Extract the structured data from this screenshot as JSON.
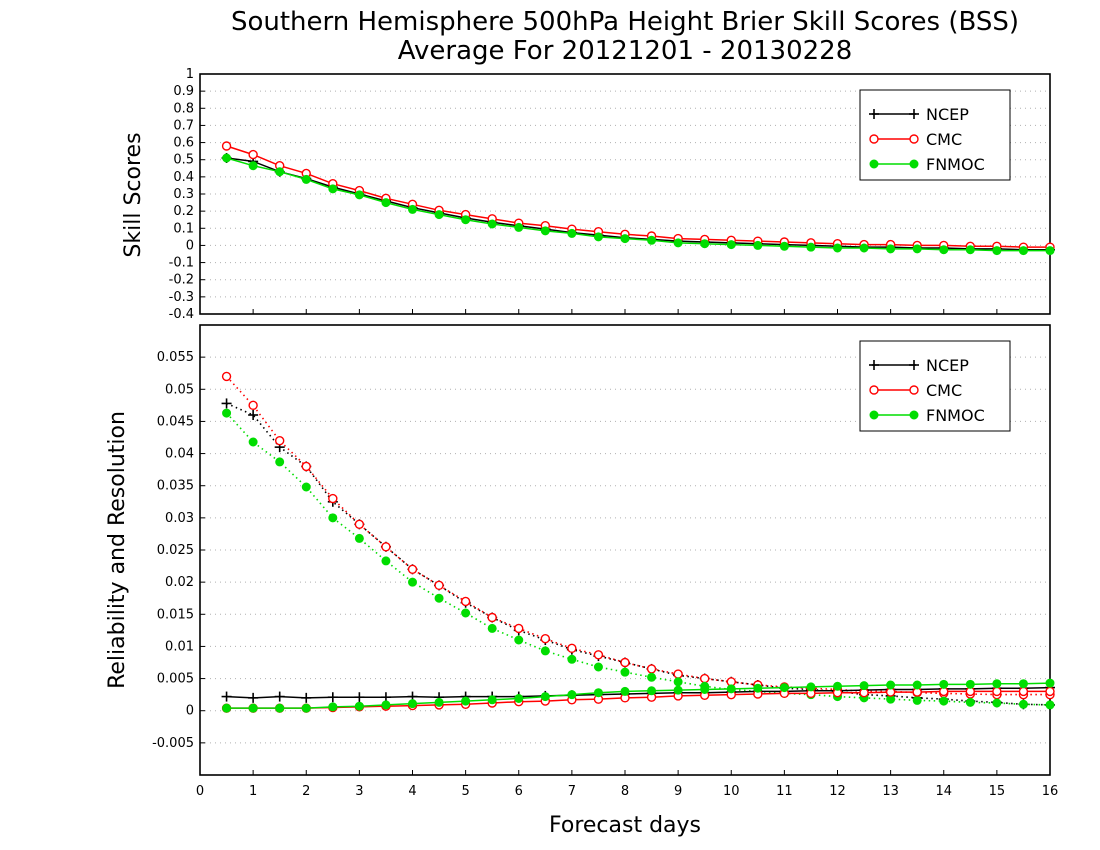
{
  "title_line1": "Southern Hemisphere 500hPa Height Brier Skill Scores (BSS)",
  "title_line2": "Average For 20121201 - 20130228",
  "xlabel": "Forecast days",
  "colors": {
    "NCEP": "#000000",
    "CMC": "#ff0000",
    "FNMOC": "#00dd00",
    "grid": "#b0b0b0"
  },
  "chart_data": [
    {
      "type": "line",
      "ylabel": "Skill Scores",
      "xlim": [
        0,
        16
      ],
      "ylim": [
        -0.4,
        1
      ],
      "grid": true,
      "legend_position": "top-right",
      "x_ticks": [
        "0",
        "1",
        "2",
        "3",
        "4",
        "5",
        "6",
        "7",
        "8",
        "9",
        "10",
        "11",
        "12",
        "13",
        "14",
        "15",
        "16"
      ],
      "y_ticks": [
        "-0.4",
        "-0.3",
        "-0.2",
        "-0.1",
        "0",
        "0.1",
        "0.2",
        "0.3",
        "0.4",
        "0.5",
        "0.6",
        "0.7",
        "0.8",
        "0.9",
        "1"
      ],
      "x": [
        0.5,
        1,
        1.5,
        2,
        2.5,
        3,
        3.5,
        4,
        4.5,
        5,
        5.5,
        6,
        6.5,
        7,
        7.5,
        8,
        8.5,
        9,
        9.5,
        10,
        10.5,
        11,
        11.5,
        12,
        12.5,
        13,
        13.5,
        14,
        14.5,
        15,
        15.5,
        16
      ],
      "series": [
        {
          "name": "NCEP",
          "marker": "plus",
          "style": "solid",
          "values": [
            0.51,
            0.49,
            0.43,
            0.39,
            0.34,
            0.3,
            0.26,
            0.22,
            0.19,
            0.16,
            0.135,
            0.115,
            0.095,
            0.075,
            0.06,
            0.045,
            0.035,
            0.025,
            0.02,
            0.015,
            0.01,
            0.005,
            0.0,
            -0.005,
            -0.01,
            -0.01,
            -0.015,
            -0.015,
            -0.02,
            -0.02,
            -0.025,
            -0.025
          ]
        },
        {
          "name": "CMC",
          "marker": "open-circle",
          "style": "solid",
          "values": [
            0.58,
            0.53,
            0.465,
            0.42,
            0.36,
            0.32,
            0.275,
            0.24,
            0.205,
            0.18,
            0.155,
            0.13,
            0.115,
            0.095,
            0.08,
            0.065,
            0.055,
            0.04,
            0.035,
            0.03,
            0.025,
            0.02,
            0.015,
            0.01,
            0.005,
            0.005,
            0.0,
            0.0,
            -0.005,
            -0.005,
            -0.01,
            -0.01
          ]
        },
        {
          "name": "FNMOC",
          "marker": "filled-circle",
          "style": "solid",
          "values": [
            0.51,
            0.465,
            0.43,
            0.385,
            0.33,
            0.295,
            0.25,
            0.21,
            0.18,
            0.15,
            0.125,
            0.105,
            0.085,
            0.07,
            0.05,
            0.04,
            0.03,
            0.015,
            0.01,
            0.005,
            0.0,
            -0.005,
            -0.01,
            -0.015,
            -0.015,
            -0.02,
            -0.02,
            -0.025,
            -0.025,
            -0.03,
            -0.03,
            -0.03
          ]
        }
      ]
    },
    {
      "type": "line",
      "ylabel": "Reliability and Resolution",
      "xlim": [
        0,
        16
      ],
      "ylim": [
        -0.01,
        0.06
      ],
      "grid": true,
      "legend_position": "top-right",
      "x_ticks": [
        "0",
        "1",
        "2",
        "3",
        "4",
        "5",
        "6",
        "7",
        "8",
        "9",
        "10",
        "11",
        "12",
        "13",
        "14",
        "15",
        "16"
      ],
      "y_ticks": [
        "-0.005",
        "0",
        "0.005",
        "0.01",
        "0.015",
        "0.02",
        "0.025",
        "0.03",
        "0.035",
        "0.04",
        "0.045",
        "0.05",
        "0.055"
      ],
      "x": [
        0.5,
        1,
        1.5,
        2,
        2.5,
        3,
        3.5,
        4,
        4.5,
        5,
        5.5,
        6,
        6.5,
        7,
        7.5,
        8,
        8.5,
        9,
        9.5,
        10,
        10.5,
        11,
        11.5,
        12,
        12.5,
        13,
        13.5,
        14,
        14.5,
        15,
        15.5,
        16
      ],
      "series": [
        {
          "name": "NCEP",
          "group": "resolution",
          "marker": "plus",
          "style": "dotted",
          "values": [
            0.0478,
            0.046,
            0.041,
            0.038,
            0.0325,
            0.029,
            0.0255,
            0.022,
            0.0195,
            0.0168,
            0.0145,
            0.0125,
            0.011,
            0.0095,
            0.0085,
            0.0075,
            0.0065,
            0.0055,
            0.005,
            0.0045,
            0.004,
            0.0035,
            0.0033,
            0.003,
            0.0025,
            0.0023,
            0.002,
            0.0018,
            0.0015,
            0.0013,
            0.001,
            0.0009
          ]
        },
        {
          "name": "CMC",
          "group": "resolution",
          "marker": "open-circle",
          "style": "dotted",
          "values": [
            0.052,
            0.0475,
            0.042,
            0.038,
            0.033,
            0.029,
            0.0255,
            0.022,
            0.0195,
            0.017,
            0.0145,
            0.0128,
            0.0112,
            0.0097,
            0.0087,
            0.0075,
            0.0065,
            0.0057,
            0.005,
            0.0045,
            0.004,
            0.0037,
            0.0035,
            0.0033,
            0.003,
            0.003,
            0.0028,
            0.0027,
            0.0026,
            0.0025,
            0.0025,
            0.0025
          ]
        },
        {
          "name": "FNMOC",
          "group": "resolution",
          "marker": "filled-circle",
          "style": "dotted",
          "values": [
            0.0463,
            0.0418,
            0.0387,
            0.0348,
            0.03,
            0.0268,
            0.0233,
            0.02,
            0.0175,
            0.0152,
            0.0128,
            0.011,
            0.0093,
            0.008,
            0.0068,
            0.006,
            0.0052,
            0.0045,
            0.0038,
            0.0033,
            0.003,
            0.0027,
            0.0025,
            0.0022,
            0.002,
            0.0018,
            0.0016,
            0.0015,
            0.0013,
            0.0012,
            0.001,
            0.0009
          ]
        },
        {
          "name": "NCEP",
          "group": "reliability",
          "marker": "plus",
          "style": "solid",
          "values": [
            0.0022,
            0.002,
            0.0022,
            0.002,
            0.0021,
            0.0021,
            0.0021,
            0.0022,
            0.0021,
            0.0022,
            0.0022,
            0.0022,
            0.0023,
            0.0024,
            0.0025,
            0.0026,
            0.0027,
            0.0028,
            0.0028,
            0.0029,
            0.003,
            0.003,
            0.0031,
            0.0031,
            0.0032,
            0.0033,
            0.0033,
            0.0034,
            0.0034,
            0.0035,
            0.0035,
            0.0036
          ]
        },
        {
          "name": "CMC",
          "group": "reliability",
          "marker": "open-circle",
          "style": "solid",
          "values": [
            0.0004,
            0.0004,
            0.0004,
            0.0004,
            0.0005,
            0.0006,
            0.0007,
            0.0008,
            0.0009,
            0.001,
            0.0012,
            0.0014,
            0.0015,
            0.0017,
            0.0018,
            0.002,
            0.0021,
            0.0023,
            0.0024,
            0.0025,
            0.0026,
            0.0027,
            0.0027,
            0.0028,
            0.0028,
            0.0029,
            0.0029,
            0.003,
            0.003,
            0.003,
            0.003,
            0.003
          ]
        },
        {
          "name": "FNMOC",
          "group": "reliability",
          "marker": "filled-circle",
          "style": "solid",
          "values": [
            0.0004,
            0.0004,
            0.0004,
            0.0004,
            0.0006,
            0.0007,
            0.0009,
            0.0011,
            0.0013,
            0.0015,
            0.0017,
            0.0019,
            0.0022,
            0.0025,
            0.0028,
            0.003,
            0.0031,
            0.0032,
            0.0033,
            0.0034,
            0.0035,
            0.0036,
            0.0037,
            0.0038,
            0.0039,
            0.004,
            0.004,
            0.0041,
            0.0041,
            0.0042,
            0.0042,
            0.0043
          ]
        }
      ]
    }
  ]
}
